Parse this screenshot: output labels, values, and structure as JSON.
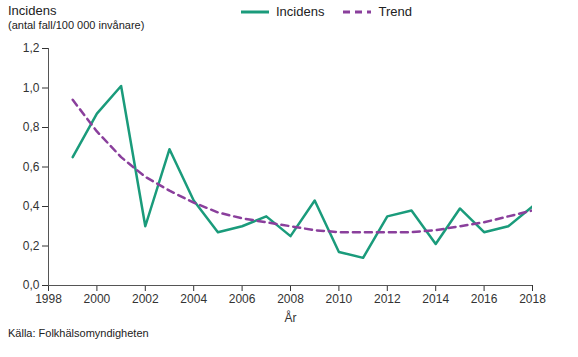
{
  "chart_data": {
    "type": "line",
    "y_label": "Incidens",
    "y_sublabel": "(antal fall/100 000 invånare)",
    "x_label": "År",
    "caption": "Källa: Folkhälsomyndigheten",
    "x": [
      1999,
      2000,
      2001,
      2002,
      2003,
      2004,
      2005,
      2006,
      2007,
      2008,
      2009,
      2010,
      2011,
      2012,
      2013,
      2014,
      2015,
      2016,
      2017,
      2018
    ],
    "series": [
      {
        "name": "Incidens",
        "color": "#1a9b7b",
        "line_style": "solid",
        "values": [
          0.65,
          0.87,
          1.01,
          0.3,
          0.69,
          0.43,
          0.27,
          0.3,
          0.35,
          0.25,
          0.43,
          0.17,
          0.14,
          0.35,
          0.38,
          0.21,
          0.39,
          0.27,
          0.3,
          0.4
        ]
      },
      {
        "name": "Trend",
        "color": "#8a3f9c",
        "line_style": "dashed",
        "values": [
          0.94,
          0.78,
          0.65,
          0.55,
          0.48,
          0.42,
          0.37,
          0.34,
          0.32,
          0.3,
          0.28,
          0.27,
          0.27,
          0.27,
          0.27,
          0.28,
          0.3,
          0.32,
          0.35,
          0.38
        ]
      }
    ],
    "xlim": [
      1998,
      2018
    ],
    "xticks": [
      1998,
      2000,
      2002,
      2004,
      2006,
      2008,
      2010,
      2012,
      2014,
      2016,
      2018
    ],
    "ylim": [
      0,
      1.2
    ],
    "yticks": [
      {
        "value": 0,
        "label": "0,0"
      },
      {
        "value": 0.2,
        "label": "0,2"
      },
      {
        "value": 0.4,
        "label": "0,4"
      },
      {
        "value": 0.6,
        "label": "0,6"
      },
      {
        "value": 0.8,
        "label": "0,8"
      },
      {
        "value": 1.0,
        "label": "1,0"
      },
      {
        "value": 1.2,
        "label": "1,2"
      }
    ],
    "grid": false,
    "legend": "top"
  }
}
